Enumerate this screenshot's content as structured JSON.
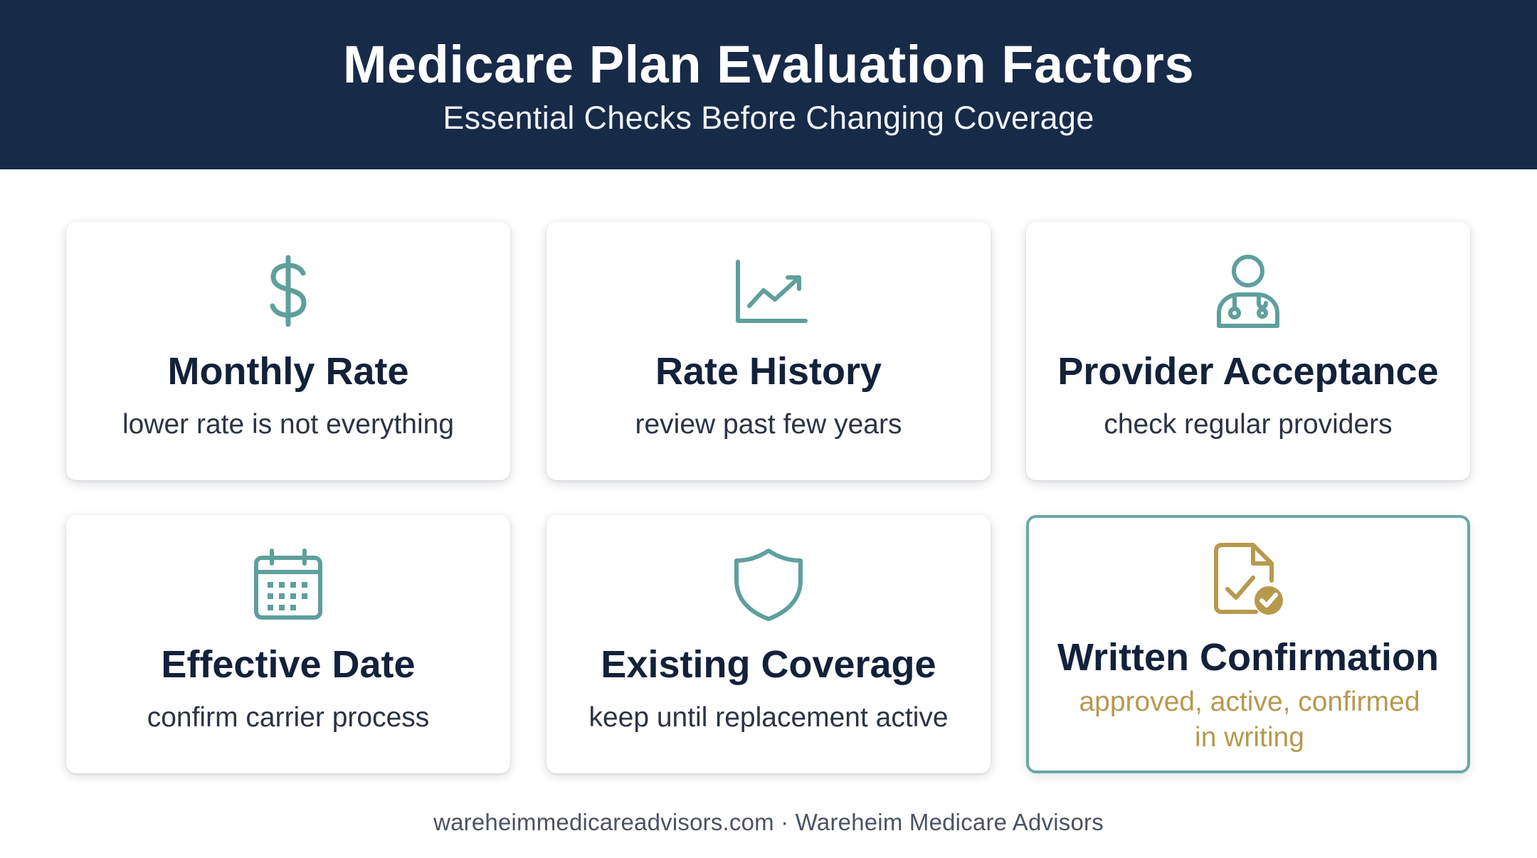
{
  "header": {
    "title": "Medicare Plan Evaluation Factors",
    "subtitle": "Essential Checks Before Changing Coverage"
  },
  "cards": [
    {
      "icon": "dollar-icon",
      "title": "Monthly Rate",
      "description": "lower rate is not everything"
    },
    {
      "icon": "line-chart-icon",
      "title": "Rate History",
      "description": "review past few years"
    },
    {
      "icon": "doctor-icon",
      "title": "Provider Acceptance",
      "description": "check regular providers"
    },
    {
      "icon": "calendar-icon",
      "title": "Effective Date",
      "description": "confirm carrier process"
    },
    {
      "icon": "shield-icon",
      "title": "Existing Coverage",
      "description": "keep until replacement active"
    },
    {
      "icon": "document-check-icon",
      "title": "Written Confirmation",
      "description": "approved, active, confirmed in writing"
    }
  ],
  "footer": {
    "text": "wareheimmedicareadvisors.com · Wareheim Medicare Advisors"
  },
  "colors": {
    "header_bg": "#172a48",
    "teal_accent": "#5f9f9c",
    "gold_accent": "#b59a4e",
    "highlight_border": "#6aa8a6"
  }
}
